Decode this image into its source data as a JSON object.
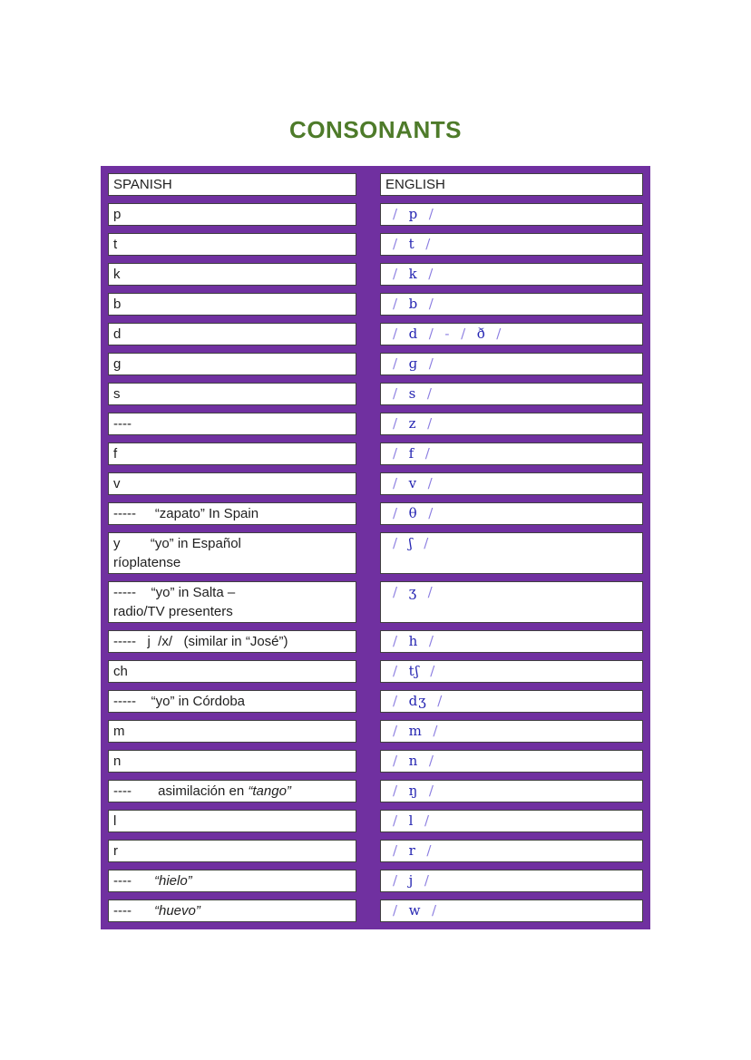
{
  "title": "CONSONANTS",
  "colors": {
    "purple": "#7030A0",
    "green": "#4e7b2a",
    "ipa_letter": "#2525b2",
    "ipa_slash": "#8a7ce0",
    "cell_border": "#404040",
    "text": "#1f1f1f"
  },
  "table": {
    "headers": [
      "SPANISH",
      "ENGLISH"
    ],
    "rows": [
      {
        "spanish": [
          {
            "text": "p"
          }
        ],
        "ipa": "/  p  /"
      },
      {
        "spanish": [
          {
            "text": "t"
          }
        ],
        "ipa": "/  t  /"
      },
      {
        "spanish": [
          {
            "text": "k"
          }
        ],
        "ipa": "/  k  /"
      },
      {
        "spanish": [
          {
            "text": "b"
          }
        ],
        "ipa": "/  b  /"
      },
      {
        "spanish": [
          {
            "text": "d"
          }
        ],
        "ipa": "/  d  /  -  /  ð  /"
      },
      {
        "spanish": [
          {
            "text": "g"
          }
        ],
        "ipa": "/  ɡ  /"
      },
      {
        "spanish": [
          {
            "text": "s"
          }
        ],
        "ipa": "/  s  /"
      },
      {
        "spanish": [
          {
            "text": "----"
          }
        ],
        "ipa": "/  z  /"
      },
      {
        "spanish": [
          {
            "text": "f"
          }
        ],
        "ipa": "/  f  /"
      },
      {
        "spanish": [
          {
            "text": "v"
          }
        ],
        "ipa": "/  v  /"
      },
      {
        "spanish": [
          {
            "text": "-----     “zapato” In Spain"
          }
        ],
        "ipa": "/  θ  /"
      },
      {
        "spanish": [
          {
            "text": "y        “yo” in Español\nríoplatense"
          }
        ],
        "ipa": "/  ʃ  /"
      },
      {
        "spanish": [
          {
            "text": "-----    “yo” in Salta –\nradio/TV presenters"
          }
        ],
        "ipa": "/  ʒ  /"
      },
      {
        "spanish": [
          {
            "text": "-----   j  /x/   (similar in “José”)"
          }
        ],
        "ipa": "/  h  /"
      },
      {
        "spanish": [
          {
            "text": "ch"
          }
        ],
        "ipa": "/  tʃ  /"
      },
      {
        "spanish": [
          {
            "text": "-----    “yo” in Córdoba"
          }
        ],
        "ipa": "/  dʒ  /"
      },
      {
        "spanish": [
          {
            "text": "m"
          }
        ],
        "ipa": "/  m  /"
      },
      {
        "spanish": [
          {
            "text": "n"
          }
        ],
        "ipa": "/  n  /"
      },
      {
        "spanish": [
          {
            "text": "----       asimilación en "
          },
          {
            "text": "“tango”",
            "italic": true
          }
        ],
        "ipa": "/  ŋ  /"
      },
      {
        "spanish": [
          {
            "text": "l"
          }
        ],
        "ipa": "/  l  /"
      },
      {
        "spanish": [
          {
            "text": "r"
          }
        ],
        "ipa": "/  r  /"
      },
      {
        "spanish": [
          {
            "text": "----      "
          },
          {
            "text": "“hielo”",
            "italic": true
          }
        ],
        "ipa": "/  j  /"
      },
      {
        "spanish": [
          {
            "text": "----      "
          },
          {
            "text": "“huevo”",
            "italic": true
          }
        ],
        "ipa": "/  w  /"
      }
    ]
  }
}
